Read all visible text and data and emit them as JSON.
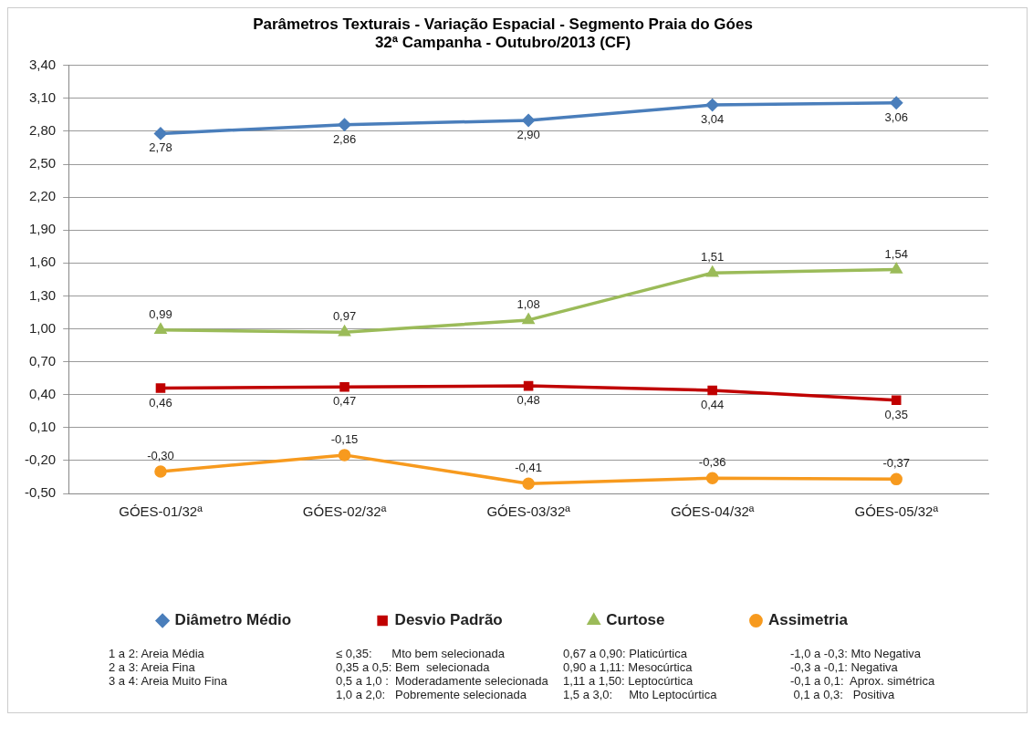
{
  "chart_data": {
    "type": "line",
    "title": "Parâmetros Texturais - Variação Espacial - Segmento Praia do Góes\n32ª Campanha - Outubro/2013 (CF)",
    "categories": [
      "GÓES-01/32ª",
      "GÓES-02/32ª",
      "GÓES-03/32ª",
      "GÓES-04/32ª",
      "GÓES-05/32ª"
    ],
    "series": [
      {
        "name": "Diâmetro Médio",
        "color": "#4a7ebb",
        "marker": "diamond",
        "values": [
          2.78,
          2.86,
          2.9,
          3.04,
          3.06
        ],
        "value_labels": [
          "2,78",
          "2,86",
          "2,90",
          "3,04",
          "3,06"
        ]
      },
      {
        "name": "Desvio Padrão",
        "color": "#c00000",
        "marker": "square",
        "values": [
          0.46,
          0.47,
          0.48,
          0.44,
          0.35
        ],
        "value_labels": [
          "0,46",
          "0,47",
          "0,48",
          "0,44",
          "0,35"
        ]
      },
      {
        "name": "Curtose",
        "color": "#9bbb59",
        "marker": "triangle",
        "values": [
          0.99,
          0.97,
          1.08,
          1.51,
          1.54
        ],
        "value_labels": [
          "0,99",
          "0,97",
          "1,08",
          "1,51",
          "1,54"
        ]
      },
      {
        "name": "Assimetria",
        "color": "#f79a1e",
        "marker": "circle",
        "values": [
          -0.3,
          -0.15,
          -0.41,
          -0.36,
          -0.37
        ],
        "value_labels": [
          "-0,30",
          "-0,15",
          "-0,41",
          "-0,36",
          "-0,37"
        ]
      }
    ],
    "ylim": [
      -0.5,
      3.4
    ],
    "yticks": [
      {
        "value": -0.5,
        "label": "-0,50"
      },
      {
        "value": -0.2,
        "label": "-0,20"
      },
      {
        "value": 0.1,
        "label": "0,10"
      },
      {
        "value": 0.4,
        "label": "0,40"
      },
      {
        "value": 0.7,
        "label": "0,70"
      },
      {
        "value": 1.0,
        "label": "1,00"
      },
      {
        "value": 1.3,
        "label": "1,30"
      },
      {
        "value": 1.6,
        "label": "1,60"
      },
      {
        "value": 1.9,
        "label": "1,90"
      },
      {
        "value": 2.2,
        "label": "2,20"
      },
      {
        "value": 2.5,
        "label": "2,50"
      },
      {
        "value": 2.8,
        "label": "2,80"
      },
      {
        "value": 3.1,
        "label": "3,10"
      },
      {
        "value": 3.4,
        "label": "3,40"
      }
    ],
    "grid": "y",
    "legend": "bottom",
    "annotations": [
      "1 a 2: Areia Média\n2 a 3: Areia Fina\n3 a 4: Areia Muito Fina",
      "≤ 0,35:      Mto bem selecionada\n0,35 a 0,5: Bem  selecionada\n0,5 a 1,0 :  Moderadamente selecionada\n1,0 a 2,0:   Pobremente selecionada",
      "0,67 a 0,90: Platicúrtica\n0,90 a 1,11: Mesocúrtica\n1,11 a 1,50: Leptocúrtica\n1,5 a 3,0:     Mto Leptocúrtica",
      "-1,0 a -0,3: Mto Negativa\n-0,3 a -0,1: Negativa\n-0,1 a 0,1:  Aprox. simétrica\n 0,1 a 0,3:   Positiva"
    ]
  }
}
